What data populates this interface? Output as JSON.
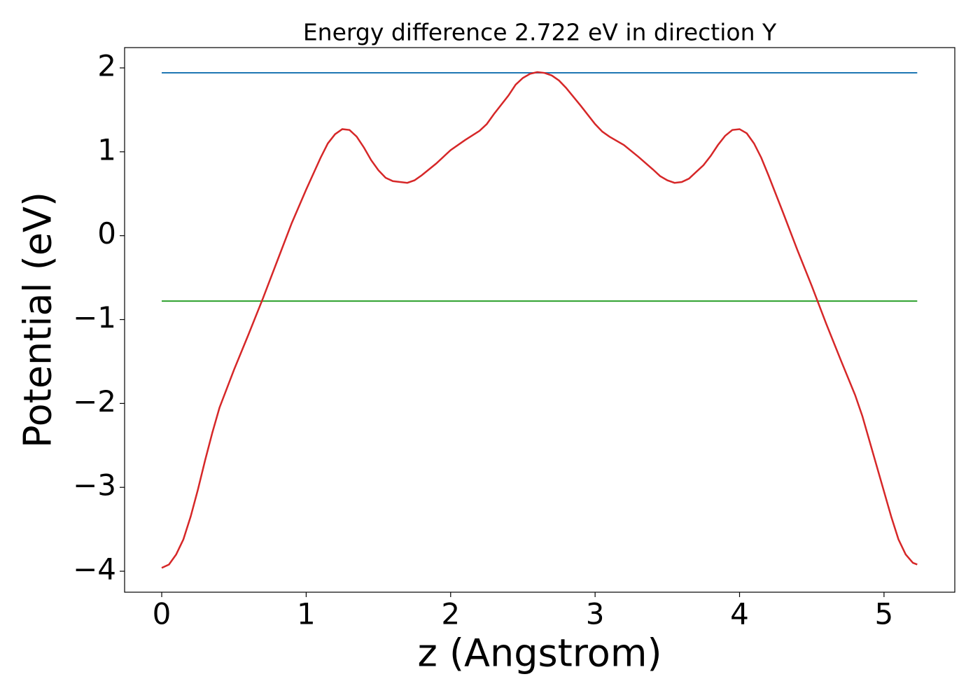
{
  "chart_data": {
    "type": "line",
    "title": "Energy difference 2.722 eV in direction Y",
    "x_label": "z (Angstrom)",
    "y_label": "Potential (eV)",
    "xlim": [
      -0.257,
      5.49
    ],
    "ylim": [
      -4.25,
      2.242
    ],
    "xticks": [
      0,
      1,
      2,
      3,
      4,
      5
    ],
    "yticks": [
      {
        "value": -4,
        "label": "−4"
      },
      {
        "value": -3,
        "label": "−3"
      },
      {
        "value": -2,
        "label": "−2"
      },
      {
        "value": -1,
        "label": "−1"
      },
      0,
      1,
      2
    ],
    "series": [
      {
        "color": "#d62728",
        "x": [
          0,
          0.05,
          0.1,
          0.15,
          0.2,
          0.25,
          0.3,
          0.35,
          0.4,
          0.5,
          0.6,
          0.7,
          0.8,
          0.9,
          1.0,
          1.1,
          1.15,
          1.2,
          1.25,
          1.3,
          1.35,
          1.4,
          1.45,
          1.5,
          1.55,
          1.6,
          1.7,
          1.75,
          1.8,
          1.9,
          2.0,
          2.1,
          2.2,
          2.25,
          2.3,
          2.4,
          2.45,
          2.5,
          2.55,
          2.6,
          2.65,
          2.7,
          2.75,
          2.8,
          2.9,
          3.0,
          3.05,
          3.1,
          3.2,
          3.3,
          3.4,
          3.45,
          3.5,
          3.55,
          3.6,
          3.65,
          3.7,
          3.75,
          3.8,
          3.85,
          3.9,
          3.95,
          4.0,
          4.05,
          4.1,
          4.15,
          4.2,
          4.3,
          4.4,
          4.5,
          4.6,
          4.7,
          4.8,
          4.85,
          4.9,
          5.0,
          5.05,
          5.1,
          5.15,
          5.2,
          5.23
        ],
        "values": [
          -3.96,
          -3.92,
          -3.8,
          -3.62,
          -3.35,
          -3.03,
          -2.68,
          -2.35,
          -2.05,
          -1.6,
          -1.18,
          -0.75,
          -0.3,
          0.15,
          0.55,
          0.93,
          1.1,
          1.21,
          1.27,
          1.26,
          1.18,
          1.05,
          0.9,
          0.78,
          0.69,
          0.65,
          0.63,
          0.66,
          0.72,
          0.86,
          1.02,
          1.14,
          1.25,
          1.33,
          1.45,
          1.67,
          1.8,
          1.88,
          1.93,
          1.95,
          1.94,
          1.91,
          1.85,
          1.76,
          1.55,
          1.33,
          1.24,
          1.18,
          1.08,
          0.94,
          0.79,
          0.71,
          0.66,
          0.63,
          0.64,
          0.68,
          0.76,
          0.84,
          0.95,
          1.08,
          1.19,
          1.26,
          1.27,
          1.22,
          1.1,
          0.93,
          0.72,
          0.28,
          -0.17,
          -0.6,
          -1.05,
          -1.48,
          -1.9,
          -2.15,
          -2.45,
          -3.05,
          -3.35,
          -3.62,
          -3.8,
          -3.9,
          -3.92
        ]
      },
      {
        "color": "#1f77b4",
        "x": [
          0,
          5.23
        ],
        "values": [
          1.942,
          1.942
        ]
      },
      {
        "color": "#2ca02c",
        "x": [
          0,
          5.23
        ],
        "values": [
          -0.78,
          -0.78
        ]
      }
    ]
  }
}
